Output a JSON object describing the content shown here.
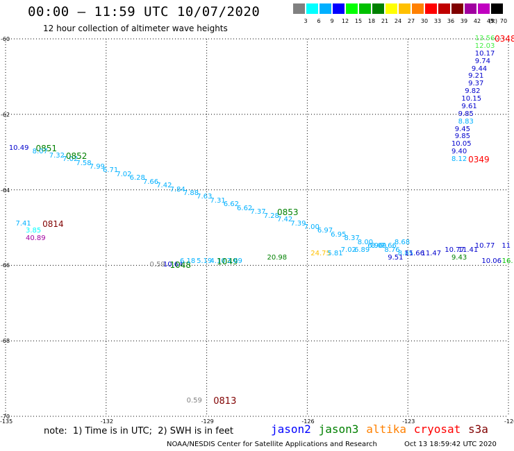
{
  "header": {
    "title": "00:00 – 11:59 UTC 10/07/2020",
    "subtitle": "12 hour collection of altimeter wave heights"
  },
  "colorbar": {
    "colors": [
      "#808080",
      "#00ffff",
      "#00b0ff",
      "#0000ff",
      "#00ff00",
      "#00c000",
      "#008000",
      "#ffff00",
      "#ffc000",
      "#ff8000",
      "#ff0000",
      "#c00000",
      "#800000",
      "#a000a0",
      "#c000c0",
      "#000000"
    ],
    "labels": [
      "3",
      "6",
      "9",
      "12",
      "15",
      "18",
      "21",
      "24",
      "27",
      "30",
      "33",
      "36",
      "39",
      "42",
      "45",
      "70"
    ],
    "unit": "(ft)"
  },
  "map": {
    "lon_range": [
      -135,
      -120
    ],
    "lat_range": [
      -70,
      -60
    ],
    "lon_ticks": [
      -135,
      -132,
      -129,
      -126,
      -123,
      -120
    ],
    "lon_tick_labels": [
      "-135",
      "-132",
      "-129",
      "-126",
      "-123",
      "-120"
    ],
    "lat_ticks": [
      -60,
      -62,
      -64,
      -66,
      -68,
      -70
    ],
    "lat_tick_labels": [
      "-60",
      "-62",
      "-64",
      "-66",
      "-68",
      "-70"
    ],
    "grid": "dotted"
  },
  "labels": [
    {
      "text": "13.56",
      "lon": -121.0,
      "lat": -60.0,
      "color": "#44ee44",
      "size": 10
    },
    {
      "text": "0348",
      "lon": -120.2,
      "lat": -60.0,
      "color": "#ff0000",
      "size": 12
    },
    {
      "text": "12.03",
      "lon": -121.0,
      "lat": -60.2,
      "color": "#44ee44",
      "size": 10
    },
    {
      "text": "10.17",
      "lon": -121.0,
      "lat": -60.4,
      "color": "#0000cc",
      "size": 10
    },
    {
      "text": "9.74",
      "lon": -121.0,
      "lat": -60.6,
      "color": "#0000cc",
      "size": 10
    },
    {
      "text": "9.44",
      "lon": -121.1,
      "lat": -60.8,
      "color": "#0000cc",
      "size": 10
    },
    {
      "text": "9.21",
      "lon": -121.2,
      "lat": -61.0,
      "color": "#0000cc",
      "size": 10
    },
    {
      "text": "9.37",
      "lon": -121.2,
      "lat": -61.2,
      "color": "#0000cc",
      "size": 10
    },
    {
      "text": "9.82",
      "lon": -121.3,
      "lat": -61.4,
      "color": "#0000cc",
      "size": 10
    },
    {
      "text": "10.15",
      "lon": -121.4,
      "lat": -61.6,
      "color": "#0000cc",
      "size": 10
    },
    {
      "text": "9.61",
      "lon": -121.4,
      "lat": -61.8,
      "color": "#0000cc",
      "size": 10
    },
    {
      "text": "9.85",
      "lon": -121.5,
      "lat": -62.0,
      "color": "#0000cc",
      "size": 10
    },
    {
      "text": "8.83",
      "lon": -121.5,
      "lat": -62.2,
      "color": "#00b0ff",
      "size": 10
    },
    {
      "text": "9.45",
      "lon": -121.6,
      "lat": -62.4,
      "color": "#0000cc",
      "size": 10
    },
    {
      "text": "9.85",
      "lon": -121.6,
      "lat": -62.6,
      "color": "#0000cc",
      "size": 10
    },
    {
      "text": "10.05",
      "lon": -121.7,
      "lat": -62.8,
      "color": "#0000cc",
      "size": 10
    },
    {
      "text": "9.40",
      "lon": -121.7,
      "lat": -63.0,
      "color": "#0000cc",
      "size": 10
    },
    {
      "text": "8.12",
      "lon": -121.7,
      "lat": -63.2,
      "color": "#00b0ff",
      "size": 10
    },
    {
      "text": "0349",
      "lon": -121.2,
      "lat": -63.2,
      "color": "#ff0000",
      "size": 12
    },
    {
      "text": "10.49",
      "lon": -134.9,
      "lat": -62.9,
      "color": "#0000cc",
      "size": 10
    },
    {
      "text": "0851",
      "lon": -134.1,
      "lat": -62.9,
      "color": "#008000",
      "size": 12
    },
    {
      "text": "8.07",
      "lon": -134.2,
      "lat": -63.0,
      "color": "#00b0ff",
      "size": 10
    },
    {
      "text": "7.32",
      "lon": -133.7,
      "lat": -63.1,
      "color": "#00b0ff",
      "size": 10
    },
    {
      "text": "7.02",
      "lon": -133.3,
      "lat": -63.2,
      "color": "#00b0ff",
      "size": 10
    },
    {
      "text": "0852",
      "lon": -133.2,
      "lat": -63.1,
      "color": "#008000",
      "size": 12
    },
    {
      "text": "7.58",
      "lon": -132.9,
      "lat": -63.3,
      "color": "#00b0ff",
      "size": 10
    },
    {
      "text": "7.99",
      "lon": -132.5,
      "lat": -63.4,
      "color": "#00b0ff",
      "size": 10
    },
    {
      "text": "6.71",
      "lon": -132.1,
      "lat": -63.5,
      "color": "#00b0ff",
      "size": 10
    },
    {
      "text": "7.02",
      "lon": -131.7,
      "lat": -63.6,
      "color": "#00b0ff",
      "size": 10
    },
    {
      "text": "6.28",
      "lon": -131.3,
      "lat": -63.7,
      "color": "#00b0ff",
      "size": 10
    },
    {
      "text": "7.66",
      "lon": -130.9,
      "lat": -63.8,
      "color": "#00b0ff",
      "size": 10
    },
    {
      "text": "7.42",
      "lon": -130.5,
      "lat": -63.9,
      "color": "#00b0ff",
      "size": 10
    },
    {
      "text": "7.84",
      "lon": -130.1,
      "lat": -64.0,
      "color": "#00b0ff",
      "size": 10
    },
    {
      "text": "7.88",
      "lon": -129.7,
      "lat": -64.1,
      "color": "#00b0ff",
      "size": 10
    },
    {
      "text": "7.63",
      "lon": -129.3,
      "lat": -64.2,
      "color": "#00b0ff",
      "size": 10
    },
    {
      "text": "7.31",
      "lon": -128.9,
      "lat": -64.3,
      "color": "#00b0ff",
      "size": 10
    },
    {
      "text": "6.62",
      "lon": -128.5,
      "lat": -64.4,
      "color": "#00b0ff",
      "size": 10
    },
    {
      "text": "6.62",
      "lon": -128.1,
      "lat": -64.5,
      "color": "#00b0ff",
      "size": 10
    },
    {
      "text": "7.37",
      "lon": -127.7,
      "lat": -64.6,
      "color": "#00b0ff",
      "size": 10
    },
    {
      "text": "7.28",
      "lon": -127.3,
      "lat": -64.7,
      "color": "#00b0ff",
      "size": 10
    },
    {
      "text": "0853",
      "lon": -126.9,
      "lat": -64.6,
      "color": "#008000",
      "size": 12
    },
    {
      "text": "7.42",
      "lon": -126.9,
      "lat": -64.8,
      "color": "#00b0ff",
      "size": 10
    },
    {
      "text": "7.39",
      "lon": -126.5,
      "lat": -64.9,
      "color": "#00b0ff",
      "size": 10
    },
    {
      "text": "7.00",
      "lon": -126.1,
      "lat": -65.0,
      "color": "#00b0ff",
      "size": 10
    },
    {
      "text": "6.97",
      "lon": -125.7,
      "lat": -65.1,
      "color": "#00b0ff",
      "size": 10
    },
    {
      "text": "6.95",
      "lon": -125.3,
      "lat": -65.2,
      "color": "#00b0ff",
      "size": 10
    },
    {
      "text": "8.37",
      "lon": -124.9,
      "lat": -65.3,
      "color": "#00b0ff",
      "size": 10
    },
    {
      "text": "8.00",
      "lon": -124.5,
      "lat": -65.4,
      "color": "#00b0ff",
      "size": 10
    },
    {
      "text": "8.09",
      "lon": -124.1,
      "lat": -65.5,
      "color": "#00b0ff",
      "size": 10
    },
    {
      "text": "8.76",
      "lon": -123.7,
      "lat": -65.6,
      "color": "#00b0ff",
      "size": 10
    },
    {
      "text": "8.85",
      "lon": -123.3,
      "lat": -65.7,
      "color": "#00b0ff",
      "size": 10
    },
    {
      "text": "9.51",
      "lon": -123.6,
      "lat": -65.8,
      "color": "#0000cc",
      "size": 10
    },
    {
      "text": "11.66",
      "lon": -123.1,
      "lat": -65.7,
      "color": "#0000cc",
      "size": 10
    },
    {
      "text": "11.47",
      "lon": -122.6,
      "lat": -65.7,
      "color": "#0000cc",
      "size": 10
    },
    {
      "text": "10.77",
      "lon": -121.9,
      "lat": -65.6,
      "color": "#0000cc",
      "size": 10
    },
    {
      "text": "11.41",
      "lon": -121.5,
      "lat": -65.6,
      "color": "#0000cc",
      "size": 10
    },
    {
      "text": "10.77",
      "lon": -121.0,
      "lat": -65.5,
      "color": "#0000cc",
      "size": 10
    },
    {
      "text": "11",
      "lon": -120.2,
      "lat": -65.5,
      "color": "#0000cc",
      "size": 10
    },
    {
      "text": "10.06",
      "lon": -120.8,
      "lat": -65.9,
      "color": "#0000cc",
      "size": 10
    },
    {
      "text": "16.",
      "lon": -120.1,
      "lat": -65.9,
      "color": "#00c000",
      "size": 10
    },
    {
      "text": "9.43",
      "lon": -121.7,
      "lat": -65.8,
      "color": "#008000",
      "size": 10
    },
    {
      "text": "7.41",
      "lon": -134.7,
      "lat": -64.9,
      "color": "#00b0ff",
      "size": 10
    },
    {
      "text": "0814",
      "lon": -133.9,
      "lat": -64.9,
      "color": "#800000",
      "size": 12
    },
    {
      "text": "3.85",
      "lon": -134.4,
      "lat": -65.1,
      "color": "#00ffff",
      "size": 10
    },
    {
      "text": "40.89",
      "lon": -134.4,
      "lat": -65.3,
      "color": "#a000a0",
      "size": 10
    },
    {
      "text": "0.59",
      "lon": -130.7,
      "lat": -66.0,
      "color": "#808080",
      "size": 10
    },
    {
      "text": "10.64",
      "lon": -130.3,
      "lat": -66.0,
      "color": "#0000cc",
      "size": 10
    },
    {
      "text": "1048",
      "lon": -130.1,
      "lat": -66.0,
      "color": "#008000",
      "size": 12
    },
    {
      "text": "6.18",
      "lon": -129.8,
      "lat": -65.9,
      "color": "#00b0ff",
      "size": 10
    },
    {
      "text": "5.19",
      "lon": -129.3,
      "lat": -65.9,
      "color": "#00b0ff",
      "size": 10
    },
    {
      "text": "4.10",
      "lon": -128.9,
      "lat": -65.9,
      "color": "#00b0ff",
      "size": 10
    },
    {
      "text": "1049",
      "lon": -128.7,
      "lat": -65.9,
      "color": "#008000",
      "size": 12
    },
    {
      "text": "3.69",
      "lon": -128.4,
      "lat": -65.9,
      "color": "#00b0ff",
      "size": 10
    },
    {
      "text": "20.98",
      "lon": -127.2,
      "lat": -65.8,
      "color": "#008000",
      "size": 10
    },
    {
      "text": "24.75",
      "lon": -125.9,
      "lat": -65.7,
      "color": "#ffc000",
      "size": 10
    },
    {
      "text": "5.81",
      "lon": -125.4,
      "lat": -65.7,
      "color": "#00b0ff",
      "size": 10
    },
    {
      "text": "7.02",
      "lon": -125.0,
      "lat": -65.6,
      "color": "#00b0ff",
      "size": 10
    },
    {
      "text": "6.89",
      "lon": -124.6,
      "lat": -65.6,
      "color": "#00b0ff",
      "size": 10
    },
    {
      "text": "6.96",
      "lon": -124.2,
      "lat": -65.5,
      "color": "#00b0ff",
      "size": 10
    },
    {
      "text": "7.66",
      "lon": -123.8,
      "lat": -65.5,
      "color": "#00b0ff",
      "size": 10
    },
    {
      "text": "8.68",
      "lon": -123.4,
      "lat": -65.4,
      "color": "#00b0ff",
      "size": 10
    },
    {
      "text": "0.59",
      "lon": -129.6,
      "lat": -69.6,
      "color": "#808080",
      "size": 10
    },
    {
      "text": "0813",
      "lon": -128.8,
      "lat": -69.6,
      "color": "#800000",
      "size": 13
    }
  ],
  "footer": {
    "note": "note:  1) Time is in UTC;  2) SWH is in feet",
    "satellites": [
      {
        "name": "jason2",
        "color": "#0000ff"
      },
      {
        "name": "jason3",
        "color": "#008000"
      },
      {
        "name": "altika",
        "color": "#ff8000"
      },
      {
        "name": "cryosat",
        "color": "#ff0000"
      },
      {
        "name": "s3a",
        "color": "#800000"
      }
    ],
    "credit": "NOAA/NESDIS Center for Satellite Applications and Research",
    "timestamp": "Oct 13 18:59:42 UTC 2020"
  }
}
